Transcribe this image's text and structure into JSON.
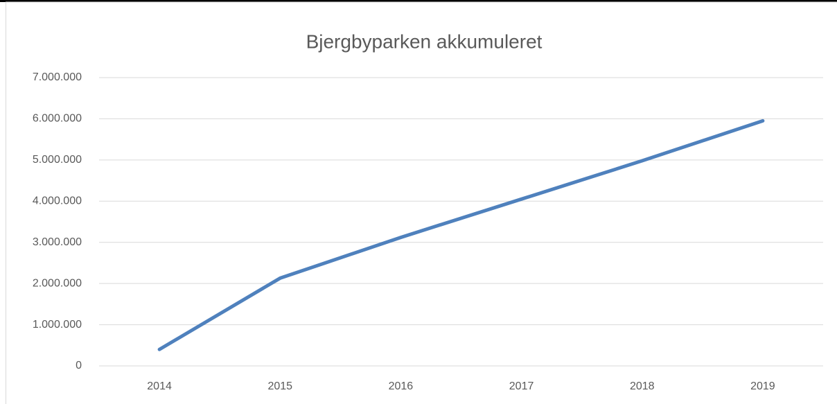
{
  "chart_data": {
    "type": "line",
    "title": "Bjergbyparken akkumuleret",
    "categories": [
      "2014",
      "2015",
      "2016",
      "2017",
      "2018",
      "2019"
    ],
    "series": [
      {
        "name": "Bjergbyparken akkumuleret",
        "color": "#4f81bd",
        "values": [
          400000,
          2130000,
          3120000,
          4050000,
          4980000,
          5950000
        ]
      }
    ],
    "ylim": [
      0,
      7000000
    ],
    "yticks": [
      0,
      {
        "value": 1000000,
        "label": "1.000.000"
      },
      {
        "value": 2000000,
        "label": "2.000.000"
      },
      {
        "value": 3000000,
        "label": "3.000.000"
      },
      {
        "value": 4000000,
        "label": "4.000.000"
      },
      {
        "value": 5000000,
        "label": "5.000.000"
      },
      {
        "value": 6000000,
        "label": "6.000.000"
      },
      {
        "value": 7000000,
        "label": "7.000.000"
      }
    ],
    "grid": true
  }
}
